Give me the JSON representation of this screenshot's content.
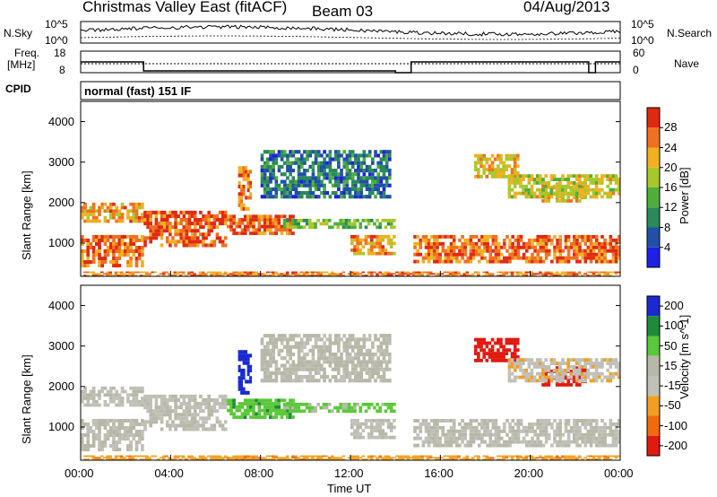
{
  "header": {
    "radar": "Christmas Valley East (fitACF)",
    "beam": "Beam 03",
    "date": "04/Aug/2013"
  },
  "strip": {
    "nsky_label": "N.Sky",
    "nsearch_label": "N.Search",
    "noise_hi": "10^5",
    "noise_lo": "10^0",
    "noise_hi_r": "10^5",
    "noise_lo_r": "10^0",
    "freq_label_1": "Freq.",
    "freq_label_2": "[MHz]",
    "freq_hi": "18",
    "freq_lo": "8",
    "nave_label": "Nave",
    "nave_hi": "60",
    "nave_lo": "0",
    "cpid_label": "CPID",
    "cpid_text": "normal (fast) 151 IF"
  },
  "axes": {
    "ylabel": "Slant Range [km]",
    "xlabel": "Time UT",
    "xticks": [
      "00:00",
      "04:00",
      "08:00",
      "12:00",
      "16:00",
      "20:00",
      "00:00"
    ],
    "yticks": [
      "1000",
      "2000",
      "3000",
      "4000"
    ]
  },
  "power_scale": {
    "label": "Power [dB]",
    "ticks": [
      "4",
      "8",
      "12",
      "16",
      "20",
      "24",
      "28"
    ],
    "colors": [
      "#1f1fe6",
      "#2050a8",
      "#2a8a5a",
      "#4fae3a",
      "#a8c82a",
      "#f0b020",
      "#f07020",
      "#e02a10"
    ]
  },
  "velocity_scale": {
    "label": "Velocity [m s^-1]",
    "ticks": [
      "200",
      "100",
      "50",
      "15",
      "-15",
      "-50",
      "-100",
      "-200"
    ],
    "colors": [
      "#1a2ad0",
      "#1f8a3a",
      "#5ac83a",
      "#b8b8a8",
      "#c0c0b8",
      "#f0a020",
      "#f06a10",
      "#e01a10"
    ]
  },
  "chart_data": {
    "type": "heatmap",
    "title": "Christmas Valley East (fitACF) Beam 03",
    "xlabel": "Time UT",
    "ylabel": "Slant Range [km]",
    "xlim": [
      0,
      24
    ],
    "ylim": [
      180,
      4500
    ],
    "panels": [
      "Power [dB]",
      "Velocity [m s^-1]"
    ],
    "power_range": [
      0,
      30
    ],
    "velocity_range": [
      -250,
      250
    ],
    "freq_mhz_segments": [
      {
        "t0": 0.0,
        "t1": 2.8,
        "value": 14
      },
      {
        "t0": 2.8,
        "t1": 14.0,
        "value": 9
      },
      {
        "t0": 14.0,
        "t1": 14.7,
        "value": 8
      },
      {
        "t0": 14.7,
        "t1": 22.6,
        "value": 14
      },
      {
        "t0": 22.6,
        "t1": 22.9,
        "value": 8
      },
      {
        "t0": 22.9,
        "t1": 24.0,
        "value": 14
      }
    ],
    "scatter_bands": [
      {
        "t0": 0.0,
        "t1": 2.8,
        "r0": 1500,
        "r1": 2000,
        "power": 22,
        "velocity": -10
      },
      {
        "t0": 0.0,
        "t1": 2.8,
        "r0": 400,
        "r1": 1200,
        "power": 24,
        "velocity": 0
      },
      {
        "t0": 2.8,
        "t1": 6.5,
        "r0": 900,
        "r1": 1800,
        "power": 26,
        "velocity": -5
      },
      {
        "t0": 6.5,
        "t1": 9.5,
        "r0": 1200,
        "r1": 1700,
        "power": 25,
        "velocity": 60
      },
      {
        "t0": 7.0,
        "t1": 7.6,
        "r0": 1800,
        "r1": 2900,
        "power": 24,
        "velocity": 180
      },
      {
        "t0": 9.0,
        "t1": 14.0,
        "r0": 1350,
        "r1": 1600,
        "power": 14,
        "velocity": 40
      },
      {
        "t0": 8.0,
        "t1": 13.8,
        "r0": 2100,
        "r1": 3300,
        "power": 8,
        "velocity": 10
      },
      {
        "t0": 12.0,
        "t1": 14.0,
        "r0": 700,
        "r1": 1200,
        "power": 22,
        "velocity": -5
      },
      {
        "t0": 14.8,
        "t1": 24.0,
        "r0": 500,
        "r1": 1200,
        "power": 25,
        "velocity": 0
      },
      {
        "t0": 17.5,
        "t1": 19.5,
        "r0": 2600,
        "r1": 3200,
        "power": 20,
        "velocity": -180
      },
      {
        "t0": 20.5,
        "t1": 22.5,
        "r0": 2000,
        "r1": 2500,
        "power": 20,
        "velocity": -190
      },
      {
        "t0": 19.0,
        "t1": 24.0,
        "r0": 2100,
        "r1": 2700,
        "power": 18,
        "velocity": -20
      },
      {
        "t0": 0.0,
        "t1": 24.0,
        "r0": 180,
        "r1": 300,
        "power": 24,
        "velocity": -60
      }
    ]
  }
}
